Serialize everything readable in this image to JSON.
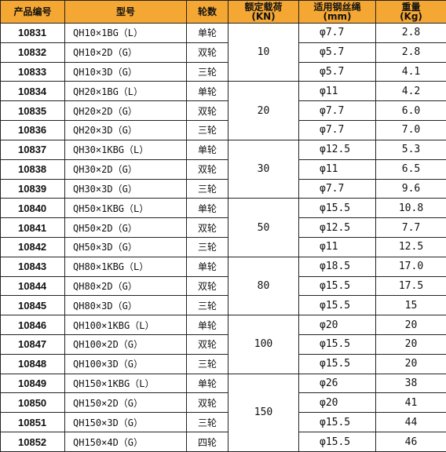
{
  "table": {
    "header": [
      [
        "产品编号"
      ],
      [
        "型号"
      ],
      [
        "轮数"
      ],
      [
        "额定载荷",
        "(KN)"
      ],
      [
        "适用钢丝绳",
        "(mm)"
      ],
      [
        "重量",
        "(Kg)"
      ]
    ],
    "groups": [
      {
        "load": "10",
        "rows": [
          [
            "10831",
            "QH10×1BG（L）",
            "单轮",
            "φ7.7",
            "2.8"
          ],
          [
            "10832",
            "QH10×2D（G）",
            "双轮",
            "φ5.7",
            "2.8"
          ],
          [
            "10833",
            "QH10×3D（G）",
            "三轮",
            "φ5.7",
            "4.1"
          ]
        ]
      },
      {
        "load": "20",
        "rows": [
          [
            "10834",
            "QH20×1BG（L）",
            "单轮",
            "φ11",
            "4.2"
          ],
          [
            "10835",
            "QH20×2D（G）",
            "双轮",
            "φ7.7",
            "6.0"
          ],
          [
            "10836",
            "QH20×3D（G）",
            "三轮",
            "φ7.7",
            "7.0"
          ]
        ]
      },
      {
        "load": "30",
        "rows": [
          [
            "10837",
            "QH30×1KBG（L）",
            "单轮",
            "φ12.5",
            "5.3"
          ],
          [
            "10838",
            "QH30×2D（G）",
            "双轮",
            "φ11",
            "6.5"
          ],
          [
            "10839",
            "QH30×3D（G）",
            "三轮",
            "φ7.7",
            "9.6"
          ]
        ]
      },
      {
        "load": "50",
        "rows": [
          [
            "10840",
            "QH50×1KBG（L）",
            "单轮",
            "φ15.5",
            "10.8"
          ],
          [
            "10841",
            "QH50×2D（G）",
            "双轮",
            "φ12.5",
            "7.7"
          ],
          [
            "10842",
            "QH50×3D（G）",
            "三轮",
            "φ11",
            "12.5"
          ]
        ]
      },
      {
        "load": "80",
        "rows": [
          [
            "10843",
            "QH80×1KBG（L）",
            "单轮",
            "φ18.5",
            "17.0"
          ],
          [
            "10844",
            "QH80×2D（G）",
            "双轮",
            "φ15.5",
            "17.5"
          ],
          [
            "10845",
            "QH80×3D（G）",
            "三轮",
            "φ15.5",
            "15"
          ]
        ]
      },
      {
        "load": "100",
        "rows": [
          [
            "10846",
            "QH100×1KBG（L）",
            "单轮",
            "φ20",
            "20"
          ],
          [
            "10847",
            "QH100×2D（G）",
            "双轮",
            "φ15.5",
            "20"
          ],
          [
            "10848",
            "QH100×3D（G）",
            "三轮",
            "φ15.5",
            "20"
          ]
        ]
      },
      {
        "load": "150",
        "rows": [
          [
            "10849",
            "QH150×1KBG（L）",
            "单轮",
            "φ26",
            "38"
          ],
          [
            "10850",
            "QH150×2D（G）",
            "双轮",
            "φ20",
            "41"
          ],
          [
            "10851",
            "QH150×3D（G）",
            "三轮",
            "φ15.5",
            "44"
          ],
          [
            "10852",
            "QH150×4D（G）",
            "四轮",
            "φ15.5",
            "46"
          ]
        ]
      }
    ]
  }
}
